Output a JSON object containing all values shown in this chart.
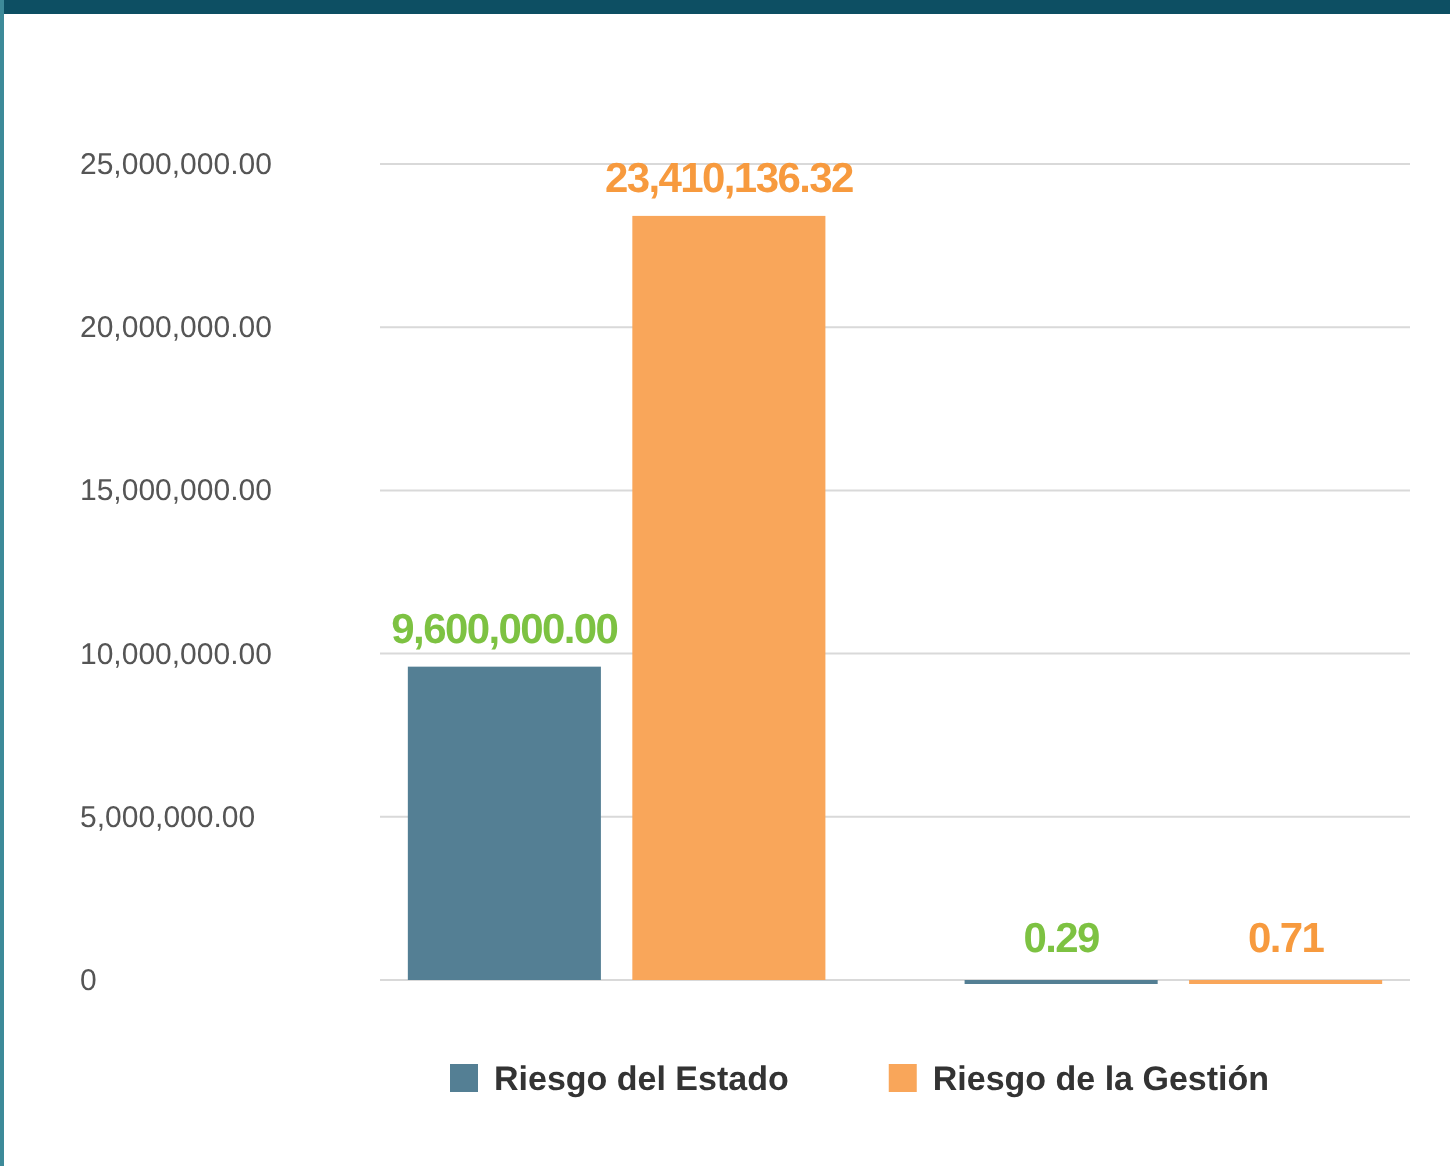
{
  "chart_data": {
    "type": "bar",
    "categories": [
      null,
      null
    ],
    "series": [
      {
        "name": "Riesgo del Estado",
        "color": "#547f94",
        "values": [
          9600000,
          0.29
        ],
        "value_labels": [
          "9,600,000.00",
          "0.29"
        ]
      },
      {
        "name": "Riesgo de la Gestión",
        "color": "#f9a65a",
        "values": [
          23410136.32,
          0.71
        ],
        "value_labels": [
          "23,410,136.32",
          "0.71"
        ]
      }
    ],
    "ylim": [
      0,
      25000000
    ],
    "yticks": [
      0,
      {
        "value": 5000000,
        "label": "5,000,000.00"
      },
      {
        "value": 10000000,
        "label": "10,000,000.00"
      },
      {
        "value": 15000000,
        "label": "15,000,000.00"
      },
      {
        "value": 20000000,
        "label": "20,000,000.00"
      },
      {
        "value": 25000000,
        "label": "25,000,000.00"
      }
    ],
    "grid": "y",
    "legend": "bottom"
  }
}
